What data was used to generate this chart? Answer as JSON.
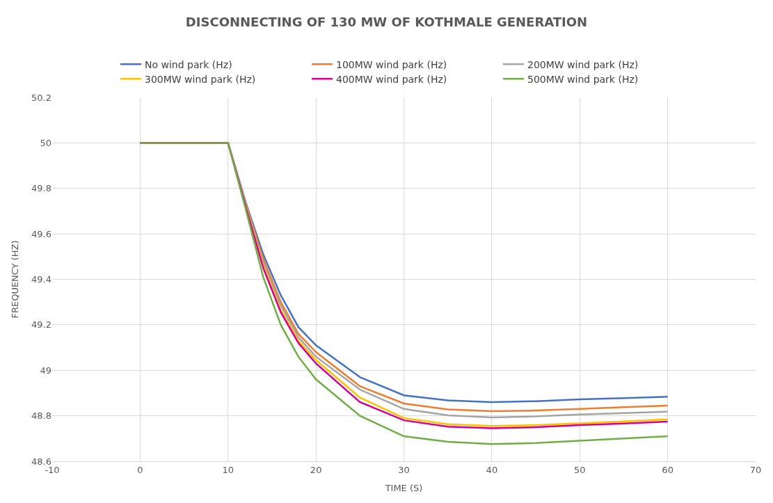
{
  "chart_data": {
    "type": "line",
    "title": "DISCONNECTING OF 130 MW OF KOTHMALE GENERATION",
    "xlabel": "TIME (S)",
    "ylabel": "FREQUENCY (HZ)",
    "x": [
      0,
      10,
      12,
      14,
      16,
      18,
      20,
      25,
      30,
      35,
      40,
      45,
      50,
      55,
      60
    ],
    "series": [
      {
        "name": "No wind park (Hz)",
        "color": "#4472c4",
        "values": [
          50,
          50,
          49.74,
          49.51,
          49.33,
          49.19,
          49.11,
          48.97,
          48.89,
          48.868,
          48.86,
          48.864,
          48.872,
          48.878,
          48.884
        ]
      },
      {
        "name": "100MW wind park (Hz)",
        "color": "#ed7d31",
        "values": [
          50,
          50,
          49.735,
          49.49,
          49.3,
          49.16,
          49.08,
          48.93,
          48.854,
          48.828,
          48.82,
          48.823,
          48.83,
          48.838,
          48.845
        ]
      },
      {
        "name": "200MW wind park (Hz)",
        "color": "#a5a5a5",
        "values": [
          50,
          50,
          49.73,
          49.475,
          49.285,
          49.145,
          49.06,
          48.915,
          48.83,
          48.802,
          48.793,
          48.797,
          48.806,
          48.812,
          48.818
        ]
      },
      {
        "name": "300MW wind park (Hz)",
        "color": "#ffc000",
        "values": [
          null,
          null,
          49.725,
          49.46,
          49.265,
          49.13,
          49.045,
          48.88,
          48.79,
          48.763,
          48.755,
          48.759,
          48.767,
          48.775,
          48.784
        ]
      },
      {
        "name": "400MW wind park (Hz)",
        "color": "#d6008f",
        "values": [
          50,
          50,
          49.72,
          49.45,
          49.255,
          49.12,
          49.03,
          48.86,
          48.78,
          48.752,
          48.745,
          48.75,
          48.759,
          48.766,
          48.774
        ]
      },
      {
        "name": "500MW wind park (Hz)",
        "color": "#70ad47",
        "values": [
          50,
          50,
          49.71,
          49.41,
          49.2,
          49.06,
          48.96,
          48.8,
          48.71,
          48.686,
          48.676,
          48.68,
          48.69,
          48.7,
          48.71
        ]
      }
    ],
    "xlim": [
      -10,
      70
    ],
    "xticks": [
      -10,
      0,
      10,
      20,
      30,
      40,
      50,
      60,
      70
    ],
    "ylim": [
      48.6,
      50.2
    ],
    "yticks": [
      48.6,
      48.8,
      49,
      49.2,
      49.4,
      49.6,
      49.8,
      50,
      50.2
    ],
    "grid": true,
    "legend": "top",
    "marker": "none",
    "line_style": "solid"
  }
}
